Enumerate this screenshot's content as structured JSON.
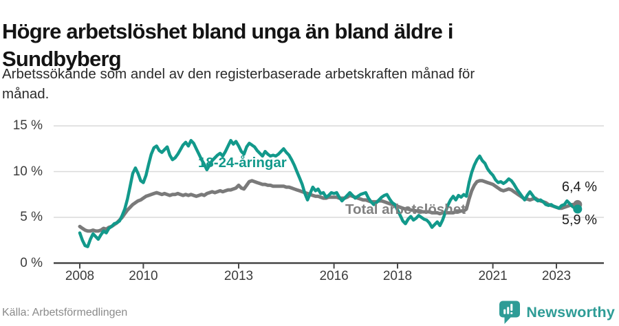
{
  "header": {
    "title_lines": [
      "Högre arbetslöshet bland unga än bland äldre i",
      "Sundbyberg"
    ],
    "subtitle_lines": [
      "Arbetssökande som andel av den registerbaserade arbetskraften månad för",
      "månad."
    ]
  },
  "footer": {
    "source": "Källa: Arbetsförmedlingen",
    "brand": "Newsworthy",
    "logo_icon": "bar-chart-speech-bubble-icon",
    "brand_color": "#2e9c96"
  },
  "chart_data": {
    "type": "line",
    "title": "Högre arbetslöshet bland unga än bland äldre i Sundbyberg",
    "subtitle": "Arbetssökande som andel av den registerbaserade arbetskraften månad för månad.",
    "x_start_year": 2008,
    "x_frequency": "monthly",
    "x_end": "2023-09",
    "x_tick_years": [
      2008,
      2010,
      2013,
      2016,
      2018,
      2021,
      2023
    ],
    "y_ticks": [
      {
        "label": "0 %",
        "value": 0
      },
      {
        "label": "5 %",
        "value": 5
      },
      {
        "label": "10 %",
        "value": 10
      },
      {
        "label": "15 %",
        "value": 15
      }
    ],
    "ylim": [
      0,
      16
    ],
    "grid": true,
    "legend_position": "inline-labels",
    "colors": {
      "grid": "#d9d9d9",
      "axis": "#474747"
    },
    "series": [
      {
        "name": "Total arbetslöshet",
        "color": "#7a7a7a",
        "end_label": "6,4 %",
        "end_value": 6.4,
        "values": [
          4.0,
          3.8,
          3.6,
          3.5,
          3.5,
          3.6,
          3.5,
          3.5,
          3.6,
          3.8,
          3.7,
          3.9,
          4.0,
          4.2,
          4.4,
          4.7,
          5.0,
          5.4,
          5.8,
          6.1,
          6.4,
          6.6,
          6.8,
          6.9,
          7.1,
          7.3,
          7.4,
          7.5,
          7.6,
          7.7,
          7.6,
          7.5,
          7.6,
          7.5,
          7.4,
          7.5,
          7.5,
          7.6,
          7.5,
          7.4,
          7.5,
          7.4,
          7.5,
          7.4,
          7.3,
          7.4,
          7.5,
          7.4,
          7.6,
          7.7,
          7.8,
          7.7,
          7.8,
          7.9,
          7.8,
          7.9,
          8.0,
          8.0,
          8.1,
          8.2,
          8.5,
          8.2,
          8.1,
          8.5,
          8.9,
          9.0,
          8.9,
          8.8,
          8.7,
          8.6,
          8.6,
          8.5,
          8.5,
          8.4,
          8.4,
          8.4,
          8.4,
          8.4,
          8.3,
          8.3,
          8.2,
          8.1,
          8.0,
          7.9,
          7.8,
          7.7,
          7.6,
          7.5,
          7.4,
          7.3,
          7.3,
          7.2,
          7.1,
          7.1,
          7.2,
          7.2,
          7.2,
          7.2,
          7.1,
          7.1,
          7.1,
          7.2,
          7.4,
          7.3,
          7.2,
          7.1,
          7.0,
          6.9,
          6.9,
          6.8,
          6.7,
          6.7,
          6.7,
          6.8,
          6.8,
          6.7,
          6.6,
          6.5,
          6.4,
          6.3,
          6.2,
          6.1,
          6.0,
          5.9,
          5.9,
          5.8,
          5.8,
          5.7,
          5.7,
          5.6,
          5.6,
          5.6,
          5.6,
          5.5,
          5.5,
          5.5,
          5.4,
          5.5,
          5.5,
          5.5,
          5.5,
          5.5,
          5.6,
          5.6,
          5.7,
          5.7,
          5.9,
          7.0,
          7.9,
          8.5,
          8.9,
          9.0,
          9.0,
          8.9,
          8.8,
          8.7,
          8.6,
          8.4,
          8.2,
          8.0,
          7.9,
          8.0,
          8.1,
          8.0,
          7.8,
          7.6,
          7.4,
          7.2,
          7.0,
          7.0,
          6.9,
          7.0,
          7.1,
          6.9,
          6.8,
          6.7,
          6.6,
          6.4,
          6.3,
          6.2,
          6.1,
          6.0,
          6.0,
          6.1,
          6.2,
          6.3,
          6.4,
          6.4,
          6.4
        ]
      },
      {
        "name": "18-24-åringar",
        "color": "#12998b",
        "end_label": "5,9 %",
        "end_value": 5.9,
        "values": [
          3.3,
          2.5,
          1.9,
          1.8,
          2.6,
          3.2,
          2.9,
          2.6,
          3.1,
          3.5,
          3.3,
          3.8,
          4.0,
          4.3,
          4.4,
          4.6,
          5.2,
          5.9,
          7.0,
          8.4,
          9.8,
          10.4,
          9.8,
          9.0,
          8.8,
          9.6,
          10.8,
          11.9,
          12.6,
          12.8,
          12.3,
          12.1,
          12.4,
          12.7,
          11.8,
          11.3,
          11.5,
          11.9,
          12.4,
          12.9,
          13.2,
          12.8,
          13.4,
          13.1,
          12.5,
          11.9,
          11.3,
          10.8,
          10.2,
          10.7,
          11.2,
          11.5,
          11.8,
          12.0,
          11.7,
          12.2,
          12.8,
          13.4,
          13.0,
          13.3,
          12.8,
          12.2,
          11.9,
          12.7,
          13.1,
          12.9,
          12.7,
          12.3,
          12.0,
          11.7,
          12.2,
          11.9,
          11.7,
          11.8,
          11.7,
          11.9,
          12.2,
          12.5,
          12.1,
          11.8,
          11.3,
          10.7,
          10.0,
          9.3,
          8.6,
          7.6,
          6.9,
          7.6,
          8.3,
          7.9,
          8.1,
          7.6,
          7.7,
          7.2,
          7.4,
          7.7,
          7.6,
          7.7,
          7.2,
          6.8,
          7.1,
          7.4,
          7.7,
          7.4,
          7.1,
          7.3,
          7.5,
          7.6,
          7.7,
          7.1,
          6.7,
          6.4,
          6.6,
          6.9,
          7.2,
          7.4,
          7.5,
          7.0,
          6.6,
          6.4,
          5.8,
          5.2,
          4.6,
          4.3,
          4.8,
          5.1,
          4.7,
          4.9,
          5.2,
          5.0,
          4.8,
          4.7,
          4.4,
          3.9,
          4.2,
          4.5,
          4.1,
          4.7,
          5.5,
          6.3,
          6.9,
          7.3,
          6.9,
          7.4,
          7.2,
          7.5,
          7.3,
          8.8,
          9.9,
          10.7,
          11.3,
          11.7,
          11.2,
          10.9,
          10.3,
          9.9,
          9.6,
          9.1,
          8.8,
          8.9,
          8.7,
          8.9,
          9.2,
          9.0,
          8.6,
          8.1,
          7.7,
          7.3,
          6.9,
          7.4,
          7.8,
          7.4,
          7.0,
          6.8,
          6.9,
          6.7,
          6.4,
          6.3,
          6.4,
          6.2,
          6.1,
          6.0,
          6.3,
          6.4,
          6.8,
          6.5,
          6.2,
          6.0,
          5.9
        ]
      }
    ]
  }
}
